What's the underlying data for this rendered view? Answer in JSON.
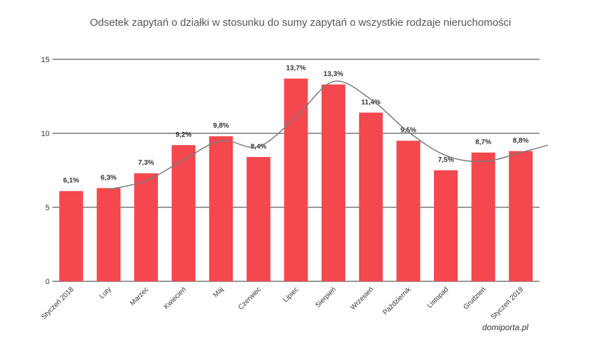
{
  "chart_data": {
    "type": "bar",
    "title": "Odsetek zapytań o działki w stosunku do sumy zapytań o wszystkie rodzaje nieruchomości",
    "categories": [
      "Styczeń 2018",
      "Luty",
      "Marzec",
      "Kwiecień",
      "Maj",
      "Czerwiec",
      "Lipiec",
      "Sierpień",
      "Wrzesień",
      "Październik",
      "Listopad",
      "Grudzień",
      "Styczeń 2019"
    ],
    "values": [
      6.1,
      6.3,
      7.3,
      9.2,
      9.8,
      8.4,
      13.7,
      13.3,
      11.4,
      9.5,
      7.5,
      8.7,
      8.8
    ],
    "data_labels": [
      "6,1%",
      "6,3%",
      "7,3%",
      "9,2%",
      "9,8%",
      "8,4%",
      "13,7%",
      "13,3%",
      "11,4%",
      "9,5%",
      "7,5%",
      "8,7%",
      "8,8%"
    ],
    "trend": {
      "x": [
        "Luty",
        "Marzec",
        "Kwiecień",
        "Maj",
        "Czerwiec",
        "Lipiec",
        "Sierpień",
        "Wrzesień",
        "Październik",
        "Listopad",
        "Grudzień",
        "Styczeń 2019"
      ],
      "values": [
        6.2,
        6.8,
        8.2,
        9.5,
        9.1,
        11.1,
        13.5,
        12.3,
        10.1,
        8.5,
        8.1,
        8.7
      ]
    },
    "ylim": [
      0,
      15
    ],
    "yticks": [
      0,
      5,
      10,
      15
    ],
    "grid": true,
    "colors": {
      "bar": "#f4484e",
      "trend": "#7a7a7a",
      "grid": "#333333"
    }
  },
  "source": "domiporta.pl"
}
